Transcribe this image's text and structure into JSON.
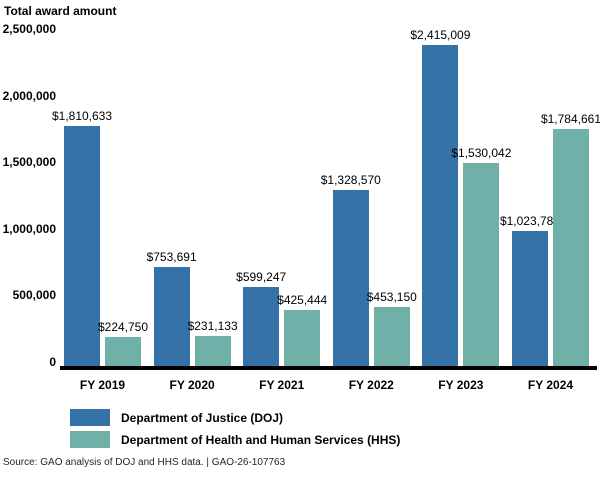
{
  "title": "Total award amount",
  "chart_data": {
    "type": "bar",
    "title": "Total award amount",
    "categories": [
      "FY 2019",
      "FY 2020",
      "FY 2021",
      "FY 2022",
      "FY 2023",
      "FY 2024"
    ],
    "series": [
      {
        "name": "Department of Justice (DOJ)",
        "color": "#3572A8",
        "values": [
          1810633,
          753691,
          599247,
          1328570,
          2415009,
          1023783
        ]
      },
      {
        "name": "Department of Health and Human Services (HHS)",
        "color": "#6FB1A8",
        "values": [
          224750,
          231133,
          425444,
          453150,
          1530042,
          1784661
        ]
      }
    ],
    "value_label_prefix": "$",
    "ylabel": "Total award amount",
    "ylim": [
      0,
      2500000
    ],
    "yticks": [
      0,
      500000,
      1000000,
      1500000,
      2000000,
      2500000
    ],
    "grid": false,
    "legend_position": "bottom-left"
  },
  "source_line": "Source: GAO analysis of DOJ and HHS data.  |  GAO-26-107763",
  "colors": {
    "doj": "#3572A8",
    "hhs": "#6FB1A8",
    "axis": "#000000",
    "background": "#FFFFFF"
  }
}
